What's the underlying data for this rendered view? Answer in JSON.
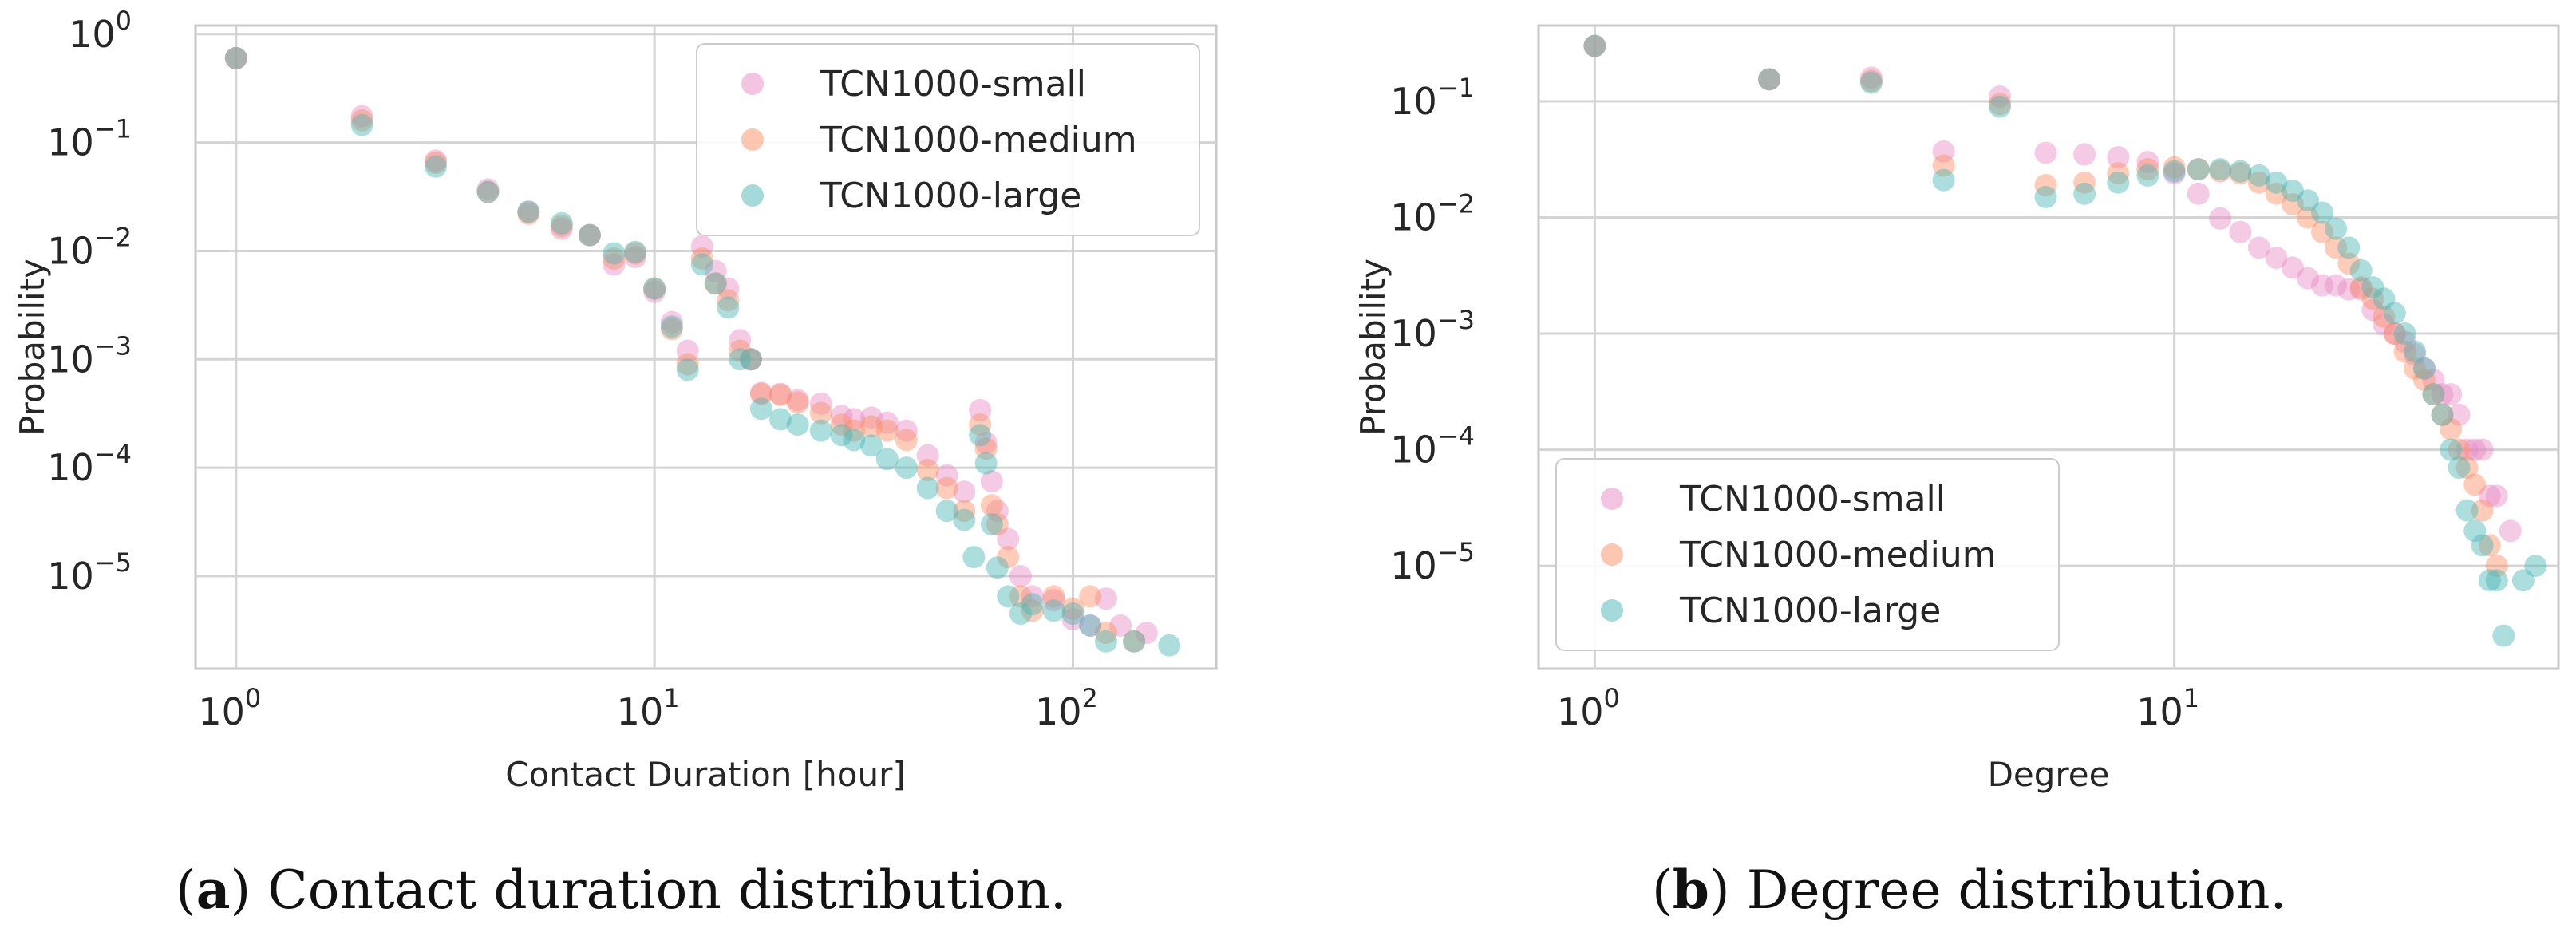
{
  "colors": {
    "small": "#e78ac3",
    "medium": "#fc8d62",
    "large": "#49b6b6",
    "grid": "#d4d4d4",
    "frame": "#c8c8c8"
  },
  "chart_data": [
    {
      "type": "scatter",
      "id": "a",
      "caption_letter": "a",
      "caption_text": "Contact duration distribution.",
      "xlabel": "Contact Duration [hour]",
      "ylabel": "Probability",
      "xscale": "log",
      "yscale": "log",
      "xlim": [
        0.8,
        220
      ],
      "ylim": [
        1.4e-06,
        1.2
      ],
      "xticks": [
        {
          "base": "10",
          "exp": "0",
          "value": 1
        },
        {
          "base": "10",
          "exp": "1",
          "value": 10
        },
        {
          "base": "10",
          "exp": "2",
          "value": 100
        }
      ],
      "yticks": [
        {
          "base": "10",
          "exp": "0",
          "value": 1
        },
        {
          "base": "10",
          "exp": "−1",
          "value": 0.1
        },
        {
          "base": "10",
          "exp": "−2",
          "value": 0.01
        },
        {
          "base": "10",
          "exp": "−3",
          "value": 0.001
        },
        {
          "base": "10",
          "exp": "−4",
          "value": 0.0001
        },
        {
          "base": "10",
          "exp": "−5",
          "value": 1e-05
        }
      ],
      "grid": true,
      "legend_position": "top-right",
      "series": [
        {
          "name": "TCN1000-small",
          "color_key": "small",
          "points": [
            [
              1,
              0.6
            ],
            [
              2,
              0.175
            ],
            [
              3,
              0.068
            ],
            [
              4,
              0.037
            ],
            [
              5,
              0.023
            ],
            [
              6,
              0.016
            ],
            [
              7,
              0.014
            ],
            [
              8,
              0.0075
            ],
            [
              9,
              0.0088
            ],
            [
              10,
              0.0042
            ],
            [
              11,
              0.0022
            ],
            [
              12,
              0.0012
            ],
            [
              13,
              0.011
            ],
            [
              14,
              0.0065
            ],
            [
              15,
              0.0045
            ],
            [
              16,
              0.0015
            ],
            [
              17,
              0.001
            ],
            [
              18,
              0.00049
            ],
            [
              20,
              0.00048
            ],
            [
              22,
              0.00042
            ],
            [
              25,
              0.00039
            ],
            [
              28,
              0.0003
            ],
            [
              30,
              0.00028
            ],
            [
              33,
              0.00029
            ],
            [
              36,
              0.00026
            ],
            [
              40,
              0.00022
            ],
            [
              45,
              0.00013
            ],
            [
              50,
              8.5e-05
            ],
            [
              55,
              6e-05
            ],
            [
              60,
              0.00034
            ],
            [
              62,
              0.00017
            ],
            [
              64,
              7.5e-05
            ],
            [
              66,
              4e-05
            ],
            [
              70,
              2.2e-05
            ],
            [
              75,
              1e-05
            ],
            [
              80,
              6.5e-06
            ],
            [
              90,
              6e-06
            ],
            [
              100,
              4e-06
            ],
            [
              110,
              3.5e-06
            ],
            [
              120,
              6.2e-06
            ],
            [
              130,
              3.5e-06
            ],
            [
              150,
              3e-06
            ]
          ]
        },
        {
          "name": "TCN1000-medium",
          "color_key": "medium",
          "points": [
            [
              1,
              0.6
            ],
            [
              2,
              0.16
            ],
            [
              3,
              0.065
            ],
            [
              4,
              0.035
            ],
            [
              5,
              0.022
            ],
            [
              6,
              0.017
            ],
            [
              7,
              0.014
            ],
            [
              8,
              0.0085
            ],
            [
              9,
              0.0095
            ],
            [
              10,
              0.0045
            ],
            [
              11,
              0.0019
            ],
            [
              12,
              0.0009
            ],
            [
              13,
              0.0085
            ],
            [
              14,
              0.005
            ],
            [
              15,
              0.0035
            ],
            [
              16,
              0.0012
            ],
            [
              17,
              0.001
            ],
            [
              18,
              0.00048
            ],
            [
              20,
              0.00047
            ],
            [
              22,
              0.0004
            ],
            [
              25,
              0.00032
            ],
            [
              28,
              0.00025
            ],
            [
              30,
              0.00022
            ],
            [
              33,
              0.00024
            ],
            [
              36,
              0.00022
            ],
            [
              40,
              0.00018
            ],
            [
              45,
              9.5e-05
            ],
            [
              50,
              6.5e-05
            ],
            [
              55,
              4e-05
            ],
            [
              60,
              0.00025
            ],
            [
              62,
              0.00015
            ],
            [
              64,
              4.5e-05
            ],
            [
              66,
              3e-05
            ],
            [
              70,
              1.5e-05
            ],
            [
              75,
              6.5e-06
            ],
            [
              80,
              4.8e-06
            ],
            [
              90,
              6.5e-06
            ],
            [
              100,
              5e-06
            ],
            [
              110,
              6.5e-06
            ],
            [
              120,
              3e-06
            ],
            [
              140,
              2.5e-06
            ]
          ]
        },
        {
          "name": "TCN1000-large",
          "color_key": "large",
          "points": [
            [
              1,
              0.6
            ],
            [
              2,
              0.145
            ],
            [
              3,
              0.06
            ],
            [
              4,
              0.035
            ],
            [
              5,
              0.023
            ],
            [
              6,
              0.018
            ],
            [
              7,
              0.014
            ],
            [
              8,
              0.0095
            ],
            [
              9,
              0.0098
            ],
            [
              10,
              0.0045
            ],
            [
              11,
              0.002
            ],
            [
              12,
              0.0008
            ],
            [
              13,
              0.0075
            ],
            [
              14,
              0.005
            ],
            [
              15,
              0.003
            ],
            [
              16,
              0.001
            ],
            [
              17,
              0.001
            ],
            [
              18,
              0.00035
            ],
            [
              20,
              0.00028
            ],
            [
              22,
              0.00025
            ],
            [
              25,
              0.00022
            ],
            [
              28,
              0.0002
            ],
            [
              30,
              0.00018
            ],
            [
              33,
              0.00016
            ],
            [
              36,
              0.00012
            ],
            [
              40,
              0.0001
            ],
            [
              45,
              6.5e-05
            ],
            [
              50,
              4e-05
            ],
            [
              55,
              3.3e-05
            ],
            [
              58,
              1.5e-05
            ],
            [
              60,
              0.0002
            ],
            [
              62,
              0.00011
            ],
            [
              64,
              3e-05
            ],
            [
              66,
              1.2e-05
            ],
            [
              70,
              6.5e-06
            ],
            [
              75,
              4.5e-06
            ],
            [
              80,
              5.5e-06
            ],
            [
              90,
              4.8e-06
            ],
            [
              100,
              4.5e-06
            ],
            [
              110,
              3.5e-06
            ],
            [
              120,
              2.5e-06
            ],
            [
              140,
              2.5e-06
            ],
            [
              170,
              2.3e-06
            ]
          ]
        }
      ]
    },
    {
      "type": "scatter",
      "id": "b",
      "caption_letter": "b",
      "caption_text": "Degree distribution.",
      "xlabel": "Degree",
      "ylabel": "Probability",
      "xscale": "log",
      "yscale": "log",
      "xlim": [
        0.8,
        46
      ],
      "ylim": [
        1.3e-06,
        0.45
      ],
      "xticks": [
        {
          "base": "10",
          "exp": "0",
          "value": 1
        },
        {
          "base": "10",
          "exp": "1",
          "value": 10
        }
      ],
      "yticks": [
        {
          "base": "10",
          "exp": "−1",
          "value": 0.1
        },
        {
          "base": "10",
          "exp": "−2",
          "value": 0.01
        },
        {
          "base": "10",
          "exp": "−3",
          "value": 0.001
        },
        {
          "base": "10",
          "exp": "−4",
          "value": 0.0001
        },
        {
          "base": "10",
          "exp": "−5",
          "value": 1e-05
        }
      ],
      "grid": true,
      "legend_position": "bottom-left",
      "series": [
        {
          "name": "TCN1000-small",
          "color_key": "small",
          "points": [
            [
              1,
              0.3
            ],
            [
              2,
              0.155
            ],
            [
              3,
              0.16
            ],
            [
              4,
              0.037
            ],
            [
              5,
              0.11
            ],
            [
              6,
              0.036
            ],
            [
              7,
              0.035
            ],
            [
              8,
              0.033
            ],
            [
              9,
              0.03
            ],
            [
              10,
              0.024
            ],
            [
              11,
              0.016
            ],
            [
              12,
              0.0098
            ],
            [
              13,
              0.0075
            ],
            [
              14,
              0.0055
            ],
            [
              15,
              0.0045
            ],
            [
              16,
              0.0037
            ],
            [
              17,
              0.003
            ],
            [
              18,
              0.0026
            ],
            [
              19,
              0.0026
            ],
            [
              20,
              0.0024
            ],
            [
              21,
              0.0024
            ],
            [
              22,
              0.0016
            ],
            [
              23,
              0.0012
            ],
            [
              24,
              0.001
            ],
            [
              25,
              0.00085
            ],
            [
              26,
              0.00066
            ],
            [
              27,
              0.0005
            ],
            [
              28,
              0.0004
            ],
            [
              29,
              0.0003
            ],
            [
              30,
              0.0003
            ],
            [
              31,
              0.0002
            ],
            [
              32,
              0.0001
            ],
            [
              33,
              0.0001
            ],
            [
              34,
              0.0001
            ],
            [
              35,
              4e-05
            ],
            [
              36,
              4e-05
            ],
            [
              38,
              2e-05
            ]
          ]
        },
        {
          "name": "TCN1000-medium",
          "color_key": "medium",
          "points": [
            [
              1,
              0.3
            ],
            [
              2,
              0.155
            ],
            [
              3,
              0.15
            ],
            [
              4,
              0.028
            ],
            [
              5,
              0.095
            ],
            [
              6,
              0.019
            ],
            [
              7,
              0.02
            ],
            [
              8,
              0.024
            ],
            [
              9,
              0.026
            ],
            [
              10,
              0.027
            ],
            [
              11,
              0.026
            ],
            [
              12,
              0.025
            ],
            [
              13,
              0.024
            ],
            [
              14,
              0.02
            ],
            [
              15,
              0.016
            ],
            [
              16,
              0.013
            ],
            [
              17,
              0.01
            ],
            [
              18,
              0.0075
            ],
            [
              19,
              0.0055
            ],
            [
              20,
              0.004
            ],
            [
              21,
              0.0025
            ],
            [
              22,
              0.002
            ],
            [
              23,
              0.0014
            ],
            [
              24,
              0.001
            ],
            [
              25,
              0.0007
            ],
            [
              26,
              0.0005
            ],
            [
              27,
              0.0004
            ],
            [
              28,
              0.0003
            ],
            [
              29,
              0.0002
            ],
            [
              30,
              0.00015
            ],
            [
              31,
              0.0001
            ],
            [
              32,
              7e-05
            ],
            [
              33,
              5e-05
            ],
            [
              34,
              3e-05
            ],
            [
              35,
              1.5e-05
            ],
            [
              36,
              1e-05
            ]
          ]
        },
        {
          "name": "TCN1000-large",
          "color_key": "large",
          "points": [
            [
              1,
              0.3
            ],
            [
              2,
              0.155
            ],
            [
              3,
              0.145
            ],
            [
              4,
              0.021
            ],
            [
              5,
              0.09
            ],
            [
              6,
              0.015
            ],
            [
              7,
              0.016
            ],
            [
              8,
              0.02
            ],
            [
              9,
              0.023
            ],
            [
              10,
              0.025
            ],
            [
              11,
              0.026
            ],
            [
              12,
              0.026
            ],
            [
              13,
              0.025
            ],
            [
              14,
              0.023
            ],
            [
              15,
              0.02
            ],
            [
              16,
              0.017
            ],
            [
              17,
              0.014
            ],
            [
              18,
              0.011
            ],
            [
              19,
              0.008
            ],
            [
              20,
              0.0055
            ],
            [
              21,
              0.0035
            ],
            [
              22,
              0.0025
            ],
            [
              23,
              0.002
            ],
            [
              24,
              0.0015
            ],
            [
              25,
              0.001
            ],
            [
              26,
              0.0007
            ],
            [
              27,
              0.0005
            ],
            [
              28,
              0.0003
            ],
            [
              29,
              0.0002
            ],
            [
              30,
              0.0001
            ],
            [
              31,
              7e-05
            ],
            [
              32,
              3e-05
            ],
            [
              33,
              2e-05
            ],
            [
              34,
              1.5e-05
            ],
            [
              35,
              7.5e-06
            ],
            [
              36,
              7.5e-06
            ],
            [
              37,
              2.5e-06
            ],
            [
              40,
              7.5e-06
            ],
            [
              42,
              1e-05
            ]
          ]
        }
      ]
    }
  ]
}
